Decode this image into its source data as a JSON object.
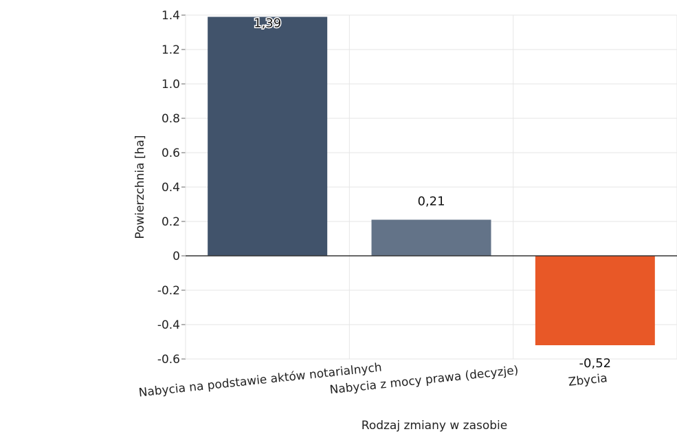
{
  "chart_data": {
    "type": "bar",
    "categories": [
      "Nabycia na podstawie aktów notarialnych",
      "Nabycia z mocy prawa (decyzje)",
      "Zbycia"
    ],
    "values": [
      1.39,
      0.21,
      -0.52
    ],
    "data_labels": [
      "1,39",
      "0,21",
      "-0,52"
    ],
    "colors": [
      "#41536b",
      "#637388",
      "#e85827"
    ],
    "xlabel": "Rodzaj zmiany w zasobie",
    "ylabel": "Powierzchnia [ha]",
    "ylim": [
      -0.6,
      1.4
    ],
    "yticks": [
      1.4,
      1.2,
      1.0,
      0.8,
      0.6,
      0.4,
      0.2,
      0,
      -0.2,
      -0.4,
      -0.6
    ],
    "ytick_labels": [
      "1.4",
      "1.2",
      "1.0",
      "0.8",
      "0.6",
      "0.4",
      "0.2",
      "0",
      "-0.2",
      "-0.4",
      "-0.6"
    ],
    "grid": true
  }
}
